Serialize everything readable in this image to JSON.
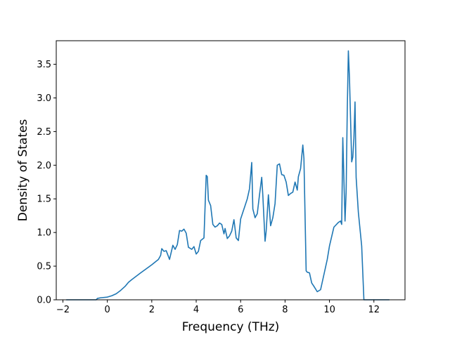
{
  "chart_data": {
    "type": "line",
    "title": "",
    "xlabel": "Frequency (THz)",
    "ylabel": "Density of States",
    "xlim": [
      -2.3,
      13.4
    ],
    "ylim": [
      0.0,
      3.85
    ],
    "xticks": [
      -2,
      0,
      2,
      4,
      6,
      8,
      10,
      12
    ],
    "xtick_labels": [
      "−2",
      "0",
      "2",
      "4",
      "6",
      "8",
      "10",
      "12"
    ],
    "yticks": [
      0.0,
      0.5,
      1.0,
      1.5,
      2.0,
      2.5,
      3.0,
      3.5
    ],
    "ytick_labels": [
      "0.0",
      "0.5",
      "1.0",
      "1.5",
      "2.0",
      "2.5",
      "3.0",
      "3.5"
    ],
    "grid": false,
    "legend": "none",
    "line_color": "#1f77b4",
    "series": [
      {
        "x": [
          -1.85,
          -1.5,
          -1.0,
          -0.5,
          -0.45,
          -0.3,
          0.0,
          0.2,
          0.4,
          0.6,
          0.8,
          0.95,
          1.1,
          1.5,
          2.0,
          2.3,
          2.4,
          2.45,
          2.55,
          2.65,
          2.8,
          2.95,
          3.05,
          3.15,
          3.25,
          3.35,
          3.45,
          3.55,
          3.65,
          3.8,
          3.9,
          4.0,
          4.1,
          4.2,
          4.35,
          4.45,
          4.5,
          4.55,
          4.65,
          4.75,
          4.85,
          4.95,
          5.05,
          5.15,
          5.25,
          5.3,
          5.4,
          5.5,
          5.6,
          5.7,
          5.8,
          5.9,
          6.0,
          6.1,
          6.2,
          6.3,
          6.4,
          6.5,
          6.55,
          6.65,
          6.75,
          6.85,
          6.95,
          7.0,
          7.1,
          7.15,
          7.25,
          7.35,
          7.45,
          7.55,
          7.65,
          7.75,
          7.85,
          7.95,
          8.05,
          8.15,
          8.25,
          8.35,
          8.45,
          8.55,
          8.6,
          8.7,
          8.8,
          8.85,
          8.95,
          9.0,
          9.1,
          9.2,
          9.3,
          9.45,
          9.6,
          9.7,
          9.8,
          9.9,
          10.0,
          10.2,
          10.4,
          10.5,
          10.55,
          10.6,
          10.7,
          10.75,
          10.8,
          10.85,
          10.9,
          11.0,
          11.05,
          11.1,
          11.15,
          11.2,
          11.3,
          11.45,
          11.55,
          11.8,
          12.0,
          12.3,
          12.7
        ],
        "y": [
          0.0,
          0.0,
          0.0,
          0.0,
          0.02,
          0.03,
          0.04,
          0.06,
          0.09,
          0.14,
          0.2,
          0.26,
          0.3,
          0.4,
          0.52,
          0.6,
          0.66,
          0.76,
          0.72,
          0.73,
          0.6,
          0.81,
          0.75,
          0.82,
          1.03,
          1.02,
          1.05,
          0.99,
          0.78,
          0.75,
          0.79,
          0.68,
          0.72,
          0.88,
          0.92,
          1.85,
          1.83,
          1.48,
          1.4,
          1.12,
          1.08,
          1.1,
          1.14,
          1.12,
          0.98,
          1.06,
          0.91,
          0.95,
          1.02,
          1.19,
          0.92,
          0.88,
          1.2,
          1.3,
          1.4,
          1.5,
          1.65,
          2.04,
          1.35,
          1.22,
          1.28,
          1.56,
          1.82,
          1.55,
          0.87,
          1.02,
          1.56,
          1.1,
          1.22,
          1.43,
          2.0,
          2.02,
          1.86,
          1.85,
          1.75,
          1.55,
          1.58,
          1.6,
          1.75,
          1.63,
          1.83,
          1.95,
          2.3,
          2.1,
          0.43,
          0.41,
          0.4,
          0.25,
          0.2,
          0.12,
          0.15,
          0.3,
          0.45,
          0.6,
          0.8,
          1.08,
          1.15,
          1.17,
          1.12,
          2.41,
          1.17,
          1.6,
          2.8,
          3.7,
          3.3,
          2.05,
          2.12,
          2.4,
          2.94,
          1.82,
          1.3,
          0.8,
          0.0,
          0.0,
          0.0,
          0.0,
          0.0
        ]
      }
    ]
  }
}
